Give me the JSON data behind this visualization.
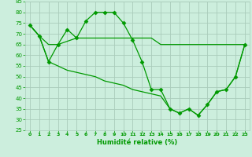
{
  "xlabel": "Humidité relative (%)",
  "xlim": [
    -0.5,
    23.5
  ],
  "ylim": [
    25,
    85
  ],
  "yticks": [
    25,
    30,
    35,
    40,
    45,
    50,
    55,
    60,
    65,
    70,
    75,
    80,
    85
  ],
  "xticks": [
    0,
    1,
    2,
    3,
    4,
    5,
    6,
    7,
    8,
    9,
    10,
    11,
    12,
    13,
    14,
    15,
    16,
    17,
    18,
    19,
    20,
    21,
    22,
    23
  ],
  "bg_color": "#cceedd",
  "grid_color": "#aaccbb",
  "line_color": "#009900",
  "line1_x": [
    0,
    1,
    2,
    3,
    4,
    5,
    6,
    7,
    8,
    9,
    10,
    11,
    12,
    13,
    14,
    15,
    16,
    17,
    18,
    19,
    20,
    21,
    22,
    23
  ],
  "line1_y": [
    74,
    69,
    57,
    65,
    72,
    68,
    76,
    80,
    80,
    80,
    75,
    67,
    57,
    44,
    44,
    35,
    33,
    35,
    32,
    37,
    43,
    44,
    50,
    65
  ],
  "line2_x": [
    0,
    1,
    2,
    3,
    5,
    6,
    7,
    8,
    9,
    10,
    11,
    12,
    13,
    14,
    15,
    22,
    23
  ],
  "line2_y": [
    74,
    69,
    65,
    65,
    68,
    68,
    68,
    68,
    68,
    68,
    68,
    68,
    68,
    65,
    65,
    65,
    65
  ],
  "line3_x": [
    0,
    1,
    2,
    3,
    4,
    5,
    6,
    7,
    8,
    9,
    10,
    11,
    12,
    13,
    14,
    15,
    16,
    17,
    18,
    19,
    20,
    21,
    22,
    23
  ],
  "line3_y": [
    74,
    69,
    57,
    55,
    53,
    52,
    51,
    50,
    48,
    47,
    46,
    44,
    43,
    42,
    41,
    35,
    33,
    35,
    32,
    37,
    43,
    44,
    50,
    65
  ],
  "marker": "D",
  "markersize": 2.5,
  "linewidth": 0.9
}
